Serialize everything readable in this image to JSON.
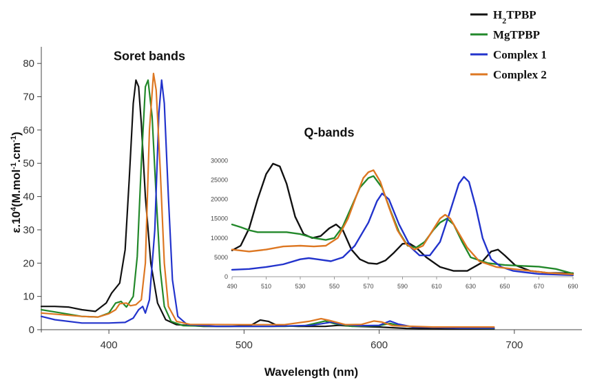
{
  "chart_data": [
    {
      "type": "line",
      "id": "main",
      "xlabel": "Wavelength (nm)",
      "ylabel_parts": [
        "ε.10",
        "4",
        "(M.mol",
        "-1",
        ".cm",
        "-1",
        ")"
      ],
      "xlim": [
        350,
        750
      ],
      "ylim": [
        0,
        85
      ],
      "xticks": [
        400,
        500,
        600,
        700
      ],
      "yticks": [
        0,
        10,
        20,
        30,
        40,
        50,
        60,
        70,
        80
      ],
      "grid": false,
      "annotations": [
        {
          "text": "Soret bands",
          "x": 430,
          "y": 81
        },
        {
          "text": "Q-bands",
          "x": 563,
          "y": 58
        }
      ],
      "legend": {
        "position": "top-right",
        "entries": [
          {
            "label_main": "H",
            "label_sub": "2",
            "label_rest": "TPBP",
            "series": "H2TPBP"
          },
          {
            "label_main": "MgTPBP",
            "label_sub": "",
            "label_rest": "",
            "series": "MgTPBP"
          },
          {
            "label_main": "Complex 1",
            "label_sub": "",
            "label_rest": "",
            "series": "Complex 1"
          },
          {
            "label_main": "Complex 2",
            "label_sub": "",
            "label_rest": "",
            "series": "Complex 2"
          }
        ]
      },
      "series": [
        {
          "name": "H2TPBP",
          "color": "#111111",
          "points": [
            [
              350,
              7
            ],
            [
              360,
              7
            ],
            [
              370,
              6.8
            ],
            [
              380,
              6
            ],
            [
              390,
              5.5
            ],
            [
              398,
              8
            ],
            [
              402,
              11
            ],
            [
              408,
              14
            ],
            [
              412,
              24
            ],
            [
              415,
              45
            ],
            [
              418,
              68
            ],
            [
              420,
              75
            ],
            [
              422,
              73
            ],
            [
              424,
              62
            ],
            [
              427,
              40
            ],
            [
              431,
              20
            ],
            [
              436,
              8
            ],
            [
              442,
              3
            ],
            [
              450,
              1.5
            ],
            [
              470,
              1
            ],
            [
              490,
              1
            ],
            [
              505,
              1.3
            ],
            [
              512,
              2.9
            ],
            [
              518,
              2.5
            ],
            [
              525,
              1.2
            ],
            [
              540,
              1
            ],
            [
              560,
              1
            ],
            [
              570,
              1.3
            ],
            [
              583,
              1
            ],
            [
              600,
              0.8
            ],
            [
              620,
              0.4
            ],
            [
              650,
              0.2
            ],
            [
              685,
              0.2
            ]
          ]
        },
        {
          "name": "MgTPBP",
          "color": "#22882a",
          "points": [
            [
              350,
              6
            ],
            [
              365,
              5
            ],
            [
              380,
              4
            ],
            [
              392,
              3.8
            ],
            [
              400,
              5
            ],
            [
              405,
              8
            ],
            [
              409,
              8.5
            ],
            [
              413,
              6.8
            ],
            [
              418,
              10
            ],
            [
              421,
              22
            ],
            [
              424,
              50
            ],
            [
              427,
              73
            ],
            [
              429,
              75
            ],
            [
              432,
              64
            ],
            [
              435,
              40
            ],
            [
              438,
              18
            ],
            [
              441,
              7
            ],
            [
              446,
              2.5
            ],
            [
              455,
              1.2
            ],
            [
              480,
              1
            ],
            [
              510,
              1
            ],
            [
              530,
              1
            ],
            [
              545,
              1.2
            ],
            [
              560,
              2.6
            ],
            [
              567,
              1.8
            ],
            [
              580,
              1
            ],
            [
              600,
              1.2
            ],
            [
              608,
              1.9
            ],
            [
              615,
              1.2
            ],
            [
              630,
              0.8
            ],
            [
              660,
              0.5
            ],
            [
              685,
              0.4
            ]
          ]
        },
        {
          "name": "Complex 1",
          "color": "#2233cc",
          "points": [
            [
              350,
              4
            ],
            [
              360,
              3
            ],
            [
              380,
              2
            ],
            [
              400,
              2
            ],
            [
              412,
              2.2
            ],
            [
              418,
              3.5
            ],
            [
              422,
              6
            ],
            [
              425,
              7
            ],
            [
              427,
              5
            ],
            [
              430,
              9
            ],
            [
              434,
              30
            ],
            [
              437,
              65
            ],
            [
              439,
              75
            ],
            [
              441,
              68
            ],
            [
              444,
              40
            ],
            [
              447,
              15
            ],
            [
              451,
              4
            ],
            [
              458,
              1.5
            ],
            [
              480,
              1
            ],
            [
              520,
              1
            ],
            [
              550,
              1.3
            ],
            [
              565,
              2.3
            ],
            [
              572,
              1.6
            ],
            [
              585,
              1.2
            ],
            [
              600,
              1.3
            ],
            [
              608,
              2.6
            ],
            [
              614,
              1.7
            ],
            [
              625,
              0.8
            ],
            [
              660,
              0.5
            ],
            [
              685,
              0.5
            ]
          ]
        },
        {
          "name": "Complex 2",
          "color": "#dd7722",
          "points": [
            [
              350,
              5
            ],
            [
              365,
              4.5
            ],
            [
              380,
              4
            ],
            [
              392,
              3.8
            ],
            [
              400,
              4.8
            ],
            [
              405,
              6
            ],
            [
              408,
              7.8
            ],
            [
              413,
              8
            ],
            [
              416,
              7.2
            ],
            [
              420,
              7.5
            ],
            [
              424,
              9
            ],
            [
              427,
              20
            ],
            [
              430,
              60
            ],
            [
              433,
              77
            ],
            [
              435,
              72
            ],
            [
              438,
              48
            ],
            [
              441,
              20
            ],
            [
              444,
              7
            ],
            [
              450,
              2.5
            ],
            [
              460,
              1.6
            ],
            [
              500,
              1.5
            ],
            [
              530,
              1.5
            ],
            [
              548,
              2.5
            ],
            [
              557,
              3.3
            ],
            [
              563,
              2.8
            ],
            [
              575,
              1.5
            ],
            [
              587,
              1.6
            ],
            [
              596,
              2.6
            ],
            [
              602,
              2.3
            ],
            [
              610,
              1.2
            ],
            [
              640,
              0.8
            ],
            [
              685,
              0.8
            ]
          ]
        }
      ]
    },
    {
      "type": "line",
      "id": "inset",
      "xlim": [
        490,
        690
      ],
      "ylim": [
        0,
        32000
      ],
      "xticks": [
        490,
        510,
        530,
        550,
        570,
        590,
        610,
        630,
        650,
        670,
        690
      ],
      "yticks": [
        0,
        5000,
        10000,
        15000,
        20000,
        25000,
        30000
      ],
      "grid": false,
      "series": [
        {
          "name": "H2TPBP",
          "color": "#111111",
          "points": [
            [
              490,
              6800
            ],
            [
              495,
              8000
            ],
            [
              500,
              12500
            ],
            [
              505,
              20000
            ],
            [
              510,
              26500
            ],
            [
              514,
              29200
            ],
            [
              518,
              28500
            ],
            [
              522,
              24000
            ],
            [
              527,
              15500
            ],
            [
              532,
              11000
            ],
            [
              537,
              10000
            ],
            [
              542,
              10500
            ],
            [
              547,
              12500
            ],
            [
              551,
              13500
            ],
            [
              555,
              12000
            ],
            [
              560,
              7000
            ],
            [
              565,
              4500
            ],
            [
              570,
              3500
            ],
            [
              575,
              3300
            ],
            [
              580,
              4200
            ],
            [
              585,
              6200
            ],
            [
              590,
              8500
            ],
            [
              594,
              8600
            ],
            [
              598,
              7500
            ],
            [
              604,
              5000
            ],
            [
              612,
              2500
            ],
            [
              620,
              1500
            ],
            [
              628,
              1500
            ],
            [
              636,
              3500
            ],
            [
              642,
              6500
            ],
            [
              646,
              7000
            ],
            [
              650,
              5500
            ],
            [
              656,
              3000
            ],
            [
              665,
              1500
            ],
            [
              675,
              1000
            ],
            [
              690,
              900
            ]
          ]
        },
        {
          "name": "MgTPBP",
          "color": "#22882a",
          "points": [
            [
              490,
              13500
            ],
            [
              495,
              12800
            ],
            [
              500,
              12000
            ],
            [
              505,
              11500
            ],
            [
              515,
              11500
            ],
            [
              522,
              11500
            ],
            [
              530,
              11000
            ],
            [
              538,
              10000
            ],
            [
              545,
              9500
            ],
            [
              550,
              10000
            ],
            [
              555,
              13000
            ],
            [
              560,
              18000
            ],
            [
              565,
              23000
            ],
            [
              570,
              25500
            ],
            [
              573,
              26000
            ],
            [
              578,
              23000
            ],
            [
              583,
              17000
            ],
            [
              588,
              11500
            ],
            [
              593,
              8000
            ],
            [
              598,
              7500
            ],
            [
              603,
              9000
            ],
            [
              608,
              12000
            ],
            [
              612,
              14000
            ],
            [
              616,
              15000
            ],
            [
              620,
              13500
            ],
            [
              625,
              9000
            ],
            [
              630,
              5000
            ],
            [
              640,
              3500
            ],
            [
              650,
              3000
            ],
            [
              660,
              2800
            ],
            [
              670,
              2600
            ],
            [
              680,
              2000
            ],
            [
              690,
              800
            ]
          ]
        },
        {
          "name": "Complex 1",
          "color": "#2233cc",
          "points": [
            [
              490,
              1800
            ],
            [
              500,
              2000
            ],
            [
              510,
              2500
            ],
            [
              520,
              3200
            ],
            [
              530,
              4500
            ],
            [
              535,
              4800
            ],
            [
              540,
              4500
            ],
            [
              548,
              4000
            ],
            [
              555,
              5000
            ],
            [
              562,
              8000
            ],
            [
              570,
              14000
            ],
            [
              575,
              19500
            ],
            [
              578,
              21500
            ],
            [
              582,
              20000
            ],
            [
              588,
              13500
            ],
            [
              595,
              7500
            ],
            [
              600,
              5500
            ],
            [
              606,
              5500
            ],
            [
              612,
              9000
            ],
            [
              618,
              17000
            ],
            [
              623,
              24000
            ],
            [
              626,
              25800
            ],
            [
              629,
              24500
            ],
            [
              633,
              18000
            ],
            [
              637,
              10000
            ],
            [
              642,
              4500
            ],
            [
              648,
              2500
            ],
            [
              655,
              1500
            ],
            [
              670,
              700
            ],
            [
              690,
              400
            ]
          ]
        },
        {
          "name": "Complex 2",
          "color": "#dd7722",
          "points": [
            [
              490,
              7000
            ],
            [
              500,
              6500
            ],
            [
              510,
              7000
            ],
            [
              520,
              7800
            ],
            [
              530,
              8000
            ],
            [
              538,
              7800
            ],
            [
              545,
              8000
            ],
            [
              552,
              10000
            ],
            [
              558,
              15000
            ],
            [
              563,
              21000
            ],
            [
              567,
              25500
            ],
            [
              570,
              27000
            ],
            [
              573,
              27500
            ],
            [
              577,
              24500
            ],
            [
              582,
              18000
            ],
            [
              587,
              12000
            ],
            [
              592,
              8500
            ],
            [
              597,
              7000
            ],
            [
              602,
              8000
            ],
            [
              607,
              11500
            ],
            [
              612,
              15000
            ],
            [
              615,
              16000
            ],
            [
              618,
              15000
            ],
            [
              622,
              12000
            ],
            [
              628,
              7500
            ],
            [
              635,
              4000
            ],
            [
              645,
              2500
            ],
            [
              655,
              2000
            ],
            [
              665,
              1500
            ],
            [
              675,
              1000
            ],
            [
              690,
              600
            ]
          ]
        }
      ]
    }
  ]
}
